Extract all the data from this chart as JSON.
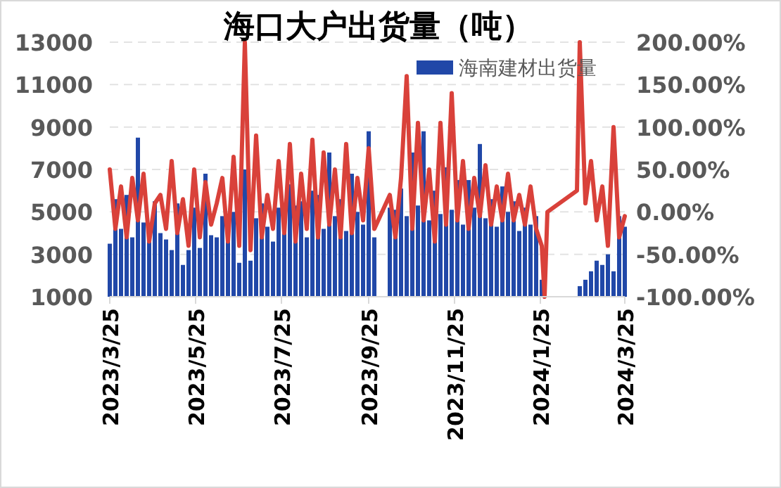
{
  "chart_data": {
    "type": "bar",
    "title": "海口大户出货量（吨）",
    "xlim": [
      "2023-03-25",
      "2024-03-25"
    ],
    "xticks": [
      {
        "value": "2023-03-25",
        "label": "2023/3/25"
      },
      {
        "value": "2023-05-25",
        "label": "2023/5/25"
      },
      {
        "value": "2023-07-25",
        "label": "2023/7/25"
      },
      {
        "value": "2023-09-25",
        "label": "2023/9/25"
      },
      {
        "value": "2023-11-25",
        "label": "2023/11/25"
      },
      {
        "value": "2024-01-25",
        "label": "2024/1/25"
      },
      {
        "value": "2024-03-25",
        "label": "2024/3/25"
      }
    ],
    "ylim": [
      1000,
      13000
    ],
    "yticks": [
      1000,
      3000,
      5000,
      7000,
      9000,
      11000,
      13000
    ],
    "y2lim": [
      -100,
      200
    ],
    "y2ticks": [
      {
        "value": -100,
        "label": "-100.00%"
      },
      {
        "value": -50,
        "label": "-50.00%"
      },
      {
        "value": 0,
        "label": "0.00%"
      },
      {
        "value": 50,
        "label": "50.00%"
      },
      {
        "value": 100,
        "label": "100.00%"
      },
      {
        "value": 150,
        "label": "150.00%"
      },
      {
        "value": 200,
        "label": "200.00%"
      }
    ],
    "grid": "y",
    "legend": "top",
    "series": [
      {
        "name": "海南建材出货量",
        "color": "#2148a8",
        "x": [
          "2023-03-25",
          "2023-03-29",
          "2023-04-02",
          "2023-04-06",
          "2023-04-10",
          "2023-04-14",
          "2023-04-18",
          "2023-04-22",
          "2023-04-26",
          "2023-04-30",
          "2023-05-04",
          "2023-05-08",
          "2023-05-12",
          "2023-05-16",
          "2023-05-20",
          "2023-05-24",
          "2023-05-28",
          "2023-06-01",
          "2023-06-05",
          "2023-06-09",
          "2023-06-13",
          "2023-06-17",
          "2023-06-21",
          "2023-06-25",
          "2023-06-29",
          "2023-07-03",
          "2023-07-07",
          "2023-07-11",
          "2023-07-15",
          "2023-07-19",
          "2023-07-23",
          "2023-07-27",
          "2023-07-31",
          "2023-08-04",
          "2023-08-08",
          "2023-08-12",
          "2023-08-16",
          "2023-08-20",
          "2023-08-24",
          "2023-08-28",
          "2023-09-01",
          "2023-09-05",
          "2023-09-09",
          "2023-09-13",
          "2023-09-17",
          "2023-09-21",
          "2023-09-25",
          "2023-09-29",
          "2023-10-10",
          "2023-10-14",
          "2023-10-18",
          "2023-10-22",
          "2023-10-26",
          "2023-10-30",
          "2023-11-03",
          "2023-11-07",
          "2023-11-11",
          "2023-11-15",
          "2023-11-19",
          "2023-11-23",
          "2023-11-27",
          "2023-12-01",
          "2023-12-05",
          "2023-12-09",
          "2023-12-13",
          "2023-12-17",
          "2023-12-21",
          "2023-12-25",
          "2023-12-29",
          "2024-01-02",
          "2024-01-06",
          "2024-01-10",
          "2024-01-14",
          "2024-01-18",
          "2024-01-22",
          "2024-01-26",
          "2024-02-22",
          "2024-02-26",
          "2024-03-01",
          "2024-03-05",
          "2024-03-09",
          "2024-03-13",
          "2024-03-17",
          "2024-03-21",
          "2024-03-25"
        ],
        "values": [
          3500,
          5600,
          4200,
          5800,
          3800,
          8500,
          4500,
          3600,
          5500,
          4000,
          3700,
          3200,
          5400,
          2500,
          3200,
          5200,
          3300,
          6800,
          3900,
          3800,
          4800,
          3600,
          5000,
          2600,
          7000,
          2700,
          4700,
          5400,
          4300,
          3600,
          5200,
          4000,
          6300,
          5300,
          5500,
          3800,
          6000,
          5800,
          4200,
          7800,
          4800,
          5600,
          4100,
          6800,
          5000,
          4400,
          8800,
          3800,
          5200,
          5100,
          6100,
          4800,
          7800,
          5300,
          8800,
          4600,
          6000,
          4900,
          7100,
          5100,
          6500,
          4400,
          6500,
          5200,
          8200,
          4700,
          5600,
          4300,
          6200,
          5000,
          5500,
          4100,
          5200,
          4400,
          4800,
          1800,
          1500,
          1800,
          2200,
          2700,
          2500,
          3000,
          2200,
          4800,
          4300
        ]
      },
      {
        "type": "line",
        "axis": "y2",
        "color": "#d9413a",
        "x": [
          "2023-03-25",
          "2023-03-29",
          "2023-04-02",
          "2023-04-06",
          "2023-04-10",
          "2023-04-14",
          "2023-04-18",
          "2023-04-22",
          "2023-04-26",
          "2023-04-30",
          "2023-05-04",
          "2023-05-08",
          "2023-05-12",
          "2023-05-16",
          "2023-05-20",
          "2023-05-24",
          "2023-05-28",
          "2023-06-01",
          "2023-06-05",
          "2023-06-09",
          "2023-06-13",
          "2023-06-17",
          "2023-06-21",
          "2023-06-25",
          "2023-06-29",
          "2023-07-03",
          "2023-07-07",
          "2023-07-11",
          "2023-07-15",
          "2023-07-19",
          "2023-07-23",
          "2023-07-27",
          "2023-07-31",
          "2023-08-04",
          "2023-08-08",
          "2023-08-12",
          "2023-08-16",
          "2023-08-20",
          "2023-08-24",
          "2023-08-28",
          "2023-09-01",
          "2023-09-05",
          "2023-09-09",
          "2023-09-13",
          "2023-09-17",
          "2023-09-21",
          "2023-09-25",
          "2023-09-29",
          "2023-10-10",
          "2023-10-14",
          "2023-10-18",
          "2023-10-22",
          "2023-10-26",
          "2023-10-30",
          "2023-11-03",
          "2023-11-07",
          "2023-11-11",
          "2023-11-15",
          "2023-11-19",
          "2023-11-23",
          "2023-11-27",
          "2023-12-01",
          "2023-12-05",
          "2023-12-09",
          "2023-12-13",
          "2023-12-17",
          "2023-12-21",
          "2023-12-25",
          "2023-12-29",
          "2024-01-02",
          "2024-01-06",
          "2024-01-10",
          "2024-01-14",
          "2024-01-18",
          "2024-01-22",
          "2024-01-26",
          "2024-01-28",
          "2024-01-30",
          "2024-02-20",
          "2024-02-22",
          "2024-02-26",
          "2024-03-01",
          "2024-03-05",
          "2024-03-09",
          "2024-03-13",
          "2024-03-17",
          "2024-03-21",
          "2024-03-25"
        ],
        "values": [
          50,
          -20,
          30,
          -30,
          40,
          -10,
          45,
          -35,
          10,
          20,
          -20,
          60,
          -25,
          15,
          -40,
          50,
          -30,
          35,
          -15,
          10,
          40,
          -35,
          65,
          -40,
          200,
          -45,
          90,
          -30,
          20,
          -20,
          60,
          -25,
          80,
          -35,
          45,
          -20,
          85,
          -30,
          70,
          -15,
          50,
          -30,
          80,
          -25,
          40,
          -10,
          75,
          -20,
          20,
          -30,
          40,
          160,
          -20,
          105,
          -10,
          50,
          -35,
          105,
          -15,
          140,
          -10,
          60,
          -20,
          40,
          -5,
          55,
          -15,
          30,
          -10,
          45,
          -10,
          20,
          -15,
          30,
          -20,
          -40,
          -100,
          0,
          25,
          200,
          10,
          60,
          -10,
          30,
          -40,
          100,
          -30,
          -5
        ]
      }
    ]
  }
}
